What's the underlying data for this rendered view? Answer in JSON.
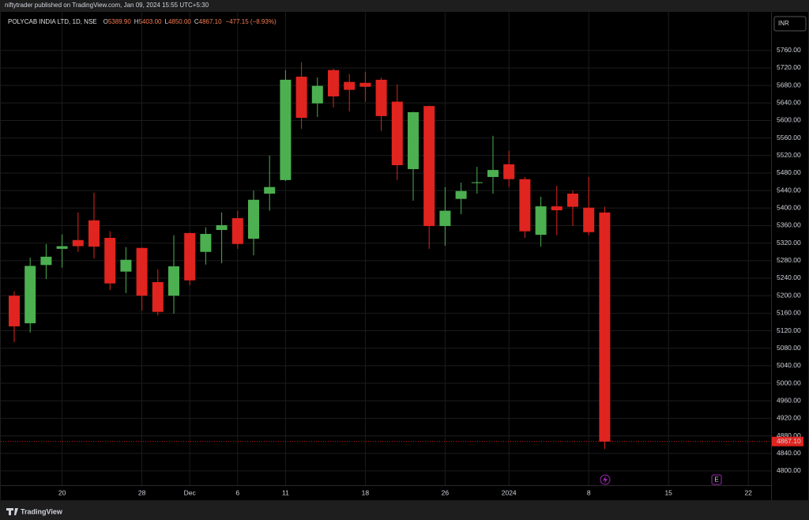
{
  "header": {
    "publisher": "niftytrader published on TradingView.com, Jan 09, 2024 15:55 UTC+5:30",
    "brand": "TradingView",
    "currency": "INR"
  },
  "chart_data": {
    "type": "candlestick",
    "symbol": "POLYCAB INDIA LTD, 1D, NSE",
    "ohlc_legend": [
      {
        "key": "O",
        "value": "5389.90"
      },
      {
        "key": "H",
        "value": "5403.00"
      },
      {
        "key": "L",
        "value": "4850.00"
      },
      {
        "key": "C",
        "value": "4867.10"
      }
    ],
    "change": "−477.15 (−8.93%)",
    "categories": [
      null,
      null,
      null,
      "20",
      null,
      null,
      null,
      null,
      "28",
      null,
      null,
      "Dec",
      null,
      null,
      "6",
      null,
      null,
      "11",
      null,
      null,
      null,
      null,
      "18",
      null,
      null,
      null,
      null,
      "26",
      null,
      null,
      null,
      "2024",
      null,
      null,
      null,
      null,
      "8",
      null,
      null,
      null,
      null,
      "15",
      null,
      null,
      null,
      null,
      "22",
      null
    ],
    "open": [
      5200,
      5137,
      5270,
      5307,
      5327,
      5372,
      5332,
      5255,
      5309,
      5231,
      5200,
      5343,
      5300,
      5350,
      5377,
      5330,
      5433,
      5464,
      5700,
      5639,
      5715,
      5688,
      5686,
      5693,
      5643,
      5489,
      5633,
      5359,
      5421,
      5457,
      5471,
      5500,
      5466,
      5339,
      5404,
      5433,
      5401,
      5389.9,
      null,
      null,
      null,
      null,
      null,
      null,
      null,
      null,
      null,
      null
    ],
    "high": [
      5210,
      5287,
      5318,
      5340,
      5390,
      5435,
      5347,
      5311,
      5310,
      5260,
      5338,
      5344,
      5356,
      5390,
      5394,
      5440,
      5520,
      5715,
      5733,
      5698,
      5718,
      5706,
      5711,
      5698,
      5682,
      5620,
      5634,
      5448,
      5458,
      5494,
      5565,
      5531,
      5471,
      5426,
      5451,
      5440,
      5471,
      5403,
      null,
      null,
      null,
      null,
      null,
      null,
      null,
      null,
      null,
      null
    ],
    "low": [
      5094,
      5116,
      5238,
      5264,
      5300,
      5285,
      5213,
      5206,
      5166,
      5155,
      5159,
      5224,
      5271,
      5274,
      5307,
      5292,
      5394,
      5462,
      5581,
      5608,
      5630,
      5621,
      5643,
      5576,
      5464,
      5417,
      5307,
      5314,
      5386,
      5433,
      5433,
      5448,
      5332,
      5312,
      5338,
      5359,
      5338,
      4850,
      null,
      null,
      null,
      null,
      null,
      null,
      null,
      null,
      null,
      null
    ],
    "close": [
      5130,
      5268,
      5289,
      5313,
      5313,
      5312,
      5228,
      5282,
      5200,
      5163,
      5267,
      5235,
      5341,
      5361,
      5318,
      5419,
      5448,
      5693,
      5606,
      5679,
      5655,
      5670,
      5677,
      5610,
      5498,
      5619,
      5359,
      5394,
      5439,
      5459,
      5487,
      5466,
      5347,
      5404,
      5395,
      5403,
      5345,
      4867.1,
      null,
      null,
      null,
      null,
      null,
      null,
      null,
      null,
      null,
      null
    ],
    "up_color": "#4caf50",
    "down_color": "#e0241f",
    "ylim": [
      4733,
      5848
    ],
    "yticks": [
      {
        "value": 4800,
        "label": "4800.00"
      },
      {
        "value": 4840,
        "label": "4840.00"
      },
      {
        "value": 4880,
        "label": "4880.00"
      },
      {
        "value": 4920,
        "label": "4920.00"
      },
      {
        "value": 4960,
        "label": "4960.00"
      },
      {
        "value": 5000,
        "label": "5000.00"
      },
      {
        "value": 5040,
        "label": "5040.00"
      },
      {
        "value": 5080,
        "label": "5080.00"
      },
      {
        "value": 5120,
        "label": "5120.00"
      },
      {
        "value": 5160,
        "label": "5160.00"
      },
      {
        "value": 5200,
        "label": "5200.00"
      },
      {
        "value": 5240,
        "label": "5240.00"
      },
      {
        "value": 5280,
        "label": "5280.00"
      },
      {
        "value": 5320,
        "label": "5320.00"
      },
      {
        "value": 5360,
        "label": "5360.00"
      },
      {
        "value": 5400,
        "label": "5400.00"
      },
      {
        "value": 5440,
        "label": "5440.00"
      },
      {
        "value": 5480,
        "label": "5480.00"
      },
      {
        "value": 5520,
        "label": "5520.00"
      },
      {
        "value": 5560,
        "label": "5560.00"
      },
      {
        "value": 5600,
        "label": "5600.00"
      },
      {
        "value": 5640,
        "label": "5640.00"
      },
      {
        "value": 5680,
        "label": "5680.00"
      },
      {
        "value": 5720,
        "label": "5720.00"
      },
      {
        "value": 5760,
        "label": "5760.00"
      }
    ],
    "grid": true,
    "last_price": {
      "value": 4867.1,
      "label": "4867.10"
    },
    "earnings_marker": "E"
  }
}
